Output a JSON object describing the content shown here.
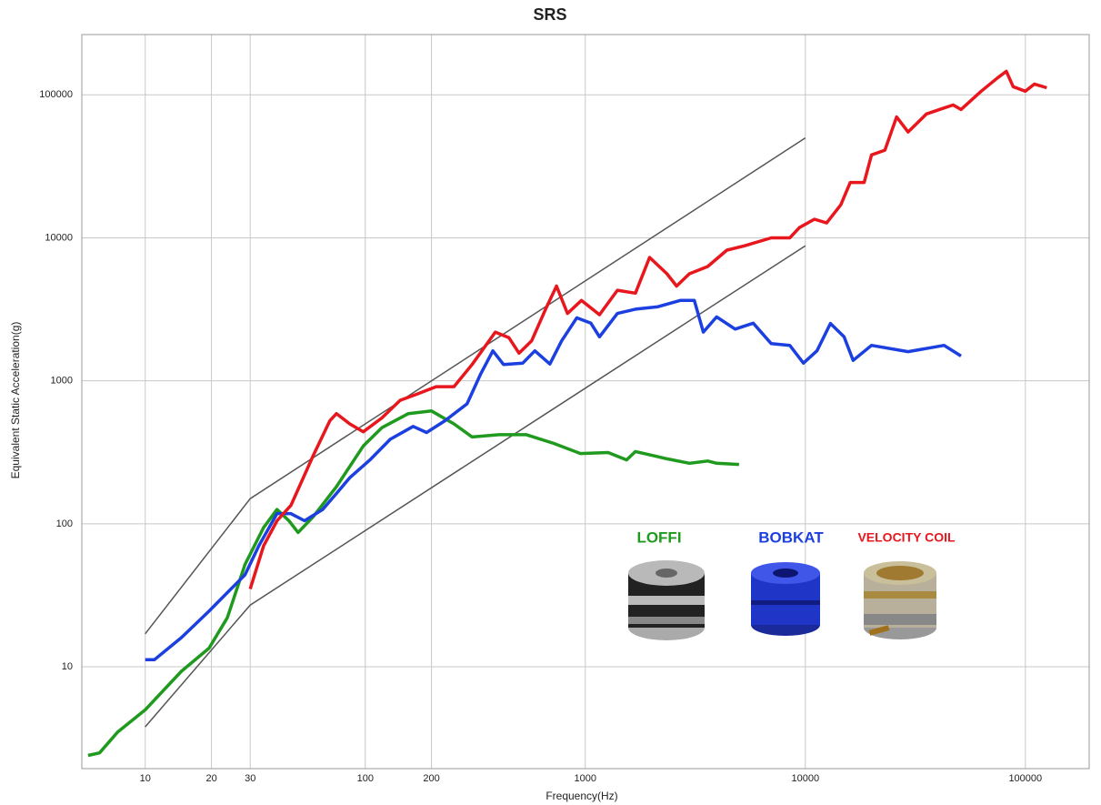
{
  "chart_data": {
    "type": "line",
    "title": "SRS",
    "x_label": "Frequency(Hz)",
    "y_label": "Equivalent Static Acceleration(g)",
    "xscale": "log",
    "yscale": "log",
    "grid": true,
    "xlim": [
      5.15,
      195000
    ],
    "ylim": [
      1.94,
      264000
    ],
    "xticks": [
      10,
      20,
      30,
      100,
      200,
      1000,
      10000,
      100000
    ],
    "yticks": [
      10,
      100,
      1000,
      10000,
      100000
    ],
    "series": [
      {
        "name": "LOFFI",
        "color": "#1f9a1f",
        "x": [
          5.5,
          6.2,
          7.5,
          10,
          14.6,
          19.5,
          23.6,
          28.4,
          34.5,
          39.7,
          45,
          49.5,
          58,
          74,
          98,
          119,
          157,
          200,
          253,
          306,
          406,
          540,
          720,
          950,
          1270,
          1540,
          1690,
          2040,
          2350,
          2970,
          3600,
          3950,
          5000
        ],
        "values": [
          2.4,
          2.5,
          3.5,
          5.0,
          9.3,
          13.5,
          22,
          52,
          94,
          126,
          105,
          87,
          112,
          182,
          350,
          470,
          590,
          615,
          500,
          405,
          420,
          420,
          365,
          310,
          315,
          280,
          320,
          300,
          285,
          265,
          275,
          265,
          260
        ]
      },
      {
        "name": "BOBKAT",
        "color": "#1c3fe0",
        "x": [
          10,
          11,
          14.6,
          19.5,
          28.4,
          32.8,
          39.7,
          45.8,
          53,
          64,
          74,
          85,
          105,
          130,
          165,
          190,
          230,
          290,
          335,
          380,
          425,
          520,
          590,
          690,
          780,
          915,
          1060,
          1160,
          1400,
          1690,
          2140,
          2700,
          3130,
          3440,
          3950,
          4800,
          5800,
          7000,
          8500,
          9800,
          11300,
          13000,
          15000,
          16500,
          20000,
          29300,
          42700,
          51000
        ],
        "values": [
          11.2,
          11.2,
          16,
          24.5,
          44,
          70,
          118,
          118,
          105,
          126,
          163,
          210,
          280,
          390,
          480,
          435,
          525,
          690,
          1120,
          1620,
          1300,
          1330,
          1620,
          1310,
          1900,
          2760,
          2530,
          2030,
          2960,
          3170,
          3300,
          3650,
          3650,
          2190,
          2800,
          2300,
          2530,
          1820,
          1770,
          1330,
          1620,
          2520,
          2030,
          1390,
          1770,
          1600,
          1770,
          1490
        ]
      },
      {
        "name": "VELOCITY COIL",
        "color": "#e8161d",
        "x": [
          30,
          34.5,
          39.7,
          46,
          58,
          69,
          74,
          85,
          98,
          119,
          144,
          173,
          210,
          253,
          306,
          390,
          450,
          500,
          570,
          660,
          740,
          830,
          960,
          1160,
          1400,
          1690,
          1960,
          2350,
          2600,
          2970,
          3600,
          4400,
          5300,
          7000,
          8500,
          9400,
          11000,
          12500,
          14500,
          16000,
          18500,
          20000,
          23000,
          26000,
          29300,
          35500,
          42700,
          47000,
          51000,
          63000,
          75000,
          82000,
          88000,
          100000,
          110000,
          125000
        ],
        "values": [
          35,
          70,
          105,
          135,
          300,
          525,
          590,
          500,
          440,
          550,
          730,
          810,
          910,
          910,
          1300,
          2190,
          2000,
          1560,
          1900,
          3170,
          4600,
          2960,
          3650,
          2900,
          4300,
          4100,
          7300,
          5600,
          4600,
          5600,
          6300,
          8200,
          8800,
          10000,
          10000,
          11800,
          13500,
          12700,
          17000,
          24400,
          24400,
          38000,
          41000,
          70000,
          55000,
          73500,
          81000,
          85000,
          79000,
          106000,
          132000,
          146000,
          114000,
          106000,
          119000,
          112000
        ]
      }
    ],
    "reference_lines": [
      {
        "color": "#555555",
        "x": [
          10,
          30,
          10000
        ],
        "values": [
          17,
          150,
          50000
        ]
      },
      {
        "color": "#555555",
        "x": [
          10,
          30,
          10000
        ],
        "values": [
          3.8,
          27,
          8800
        ]
      }
    ]
  }
}
